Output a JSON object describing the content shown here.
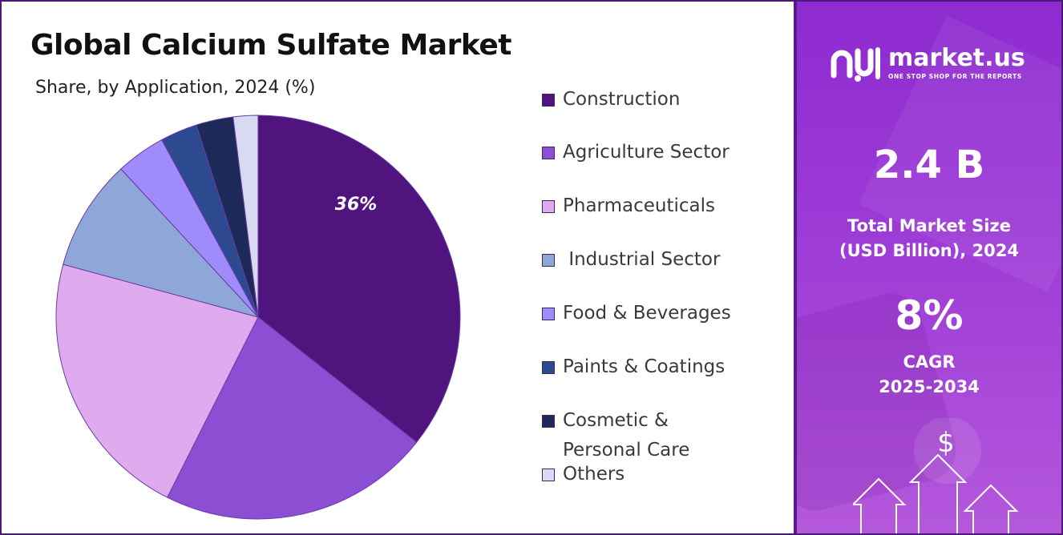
{
  "header": {
    "title": "Global Calcium Sulfate Market",
    "subtitle": "Share, by Application, 2024 (%)"
  },
  "chart_data": {
    "type": "pie",
    "title": "Global Calcium Sulfate Market",
    "subtitle": "Share, by Application, 2024 (%)",
    "categories": [
      "Construction",
      "Agriculture Sector",
      "Pharmaceuticals",
      "Industrial Sector",
      "Food & Beverages",
      "Paints & Coatings",
      "Cosmetic & Personal Care",
      "Others"
    ],
    "values": [
      36,
      22,
      22,
      9,
      4,
      3,
      3,
      2
    ],
    "data_labels": [
      "36%",
      "",
      "",
      "",
      "",
      "",
      "",
      ""
    ],
    "colors": [
      "#4f147d",
      "#8c4fd3",
      "#e0aaee",
      "#8fa6d9",
      "#9f8cfa",
      "#2d4a90",
      "#1d2a58",
      "#d8daf2"
    ],
    "legend_position": "right"
  },
  "legend": {
    "items": [
      {
        "label": "Construction",
        "color": "#4f147d"
      },
      {
        "label": "Agriculture Sector",
        "color": "#8c4fd3"
      },
      {
        "label": "Pharmaceuticals",
        "color": "#e0aaee"
      },
      {
        "label": " Industrial Sector",
        "color": "#8fa6d9"
      },
      {
        "label": "Food & Beverages",
        "color": "#9f8cfa"
      },
      {
        "label": "Paints & Coatings",
        "color": "#2d4a90"
      },
      {
        "label": "Cosmetic & Personal Care",
        "color": "#1d2a58"
      },
      {
        "label": "Others",
        "color": "#d8daf2"
      }
    ]
  },
  "sidebar": {
    "brand_name": "market.us",
    "brand_tagline": "ONE STOP SHOP FOR THE REPORTS",
    "market_size_value": "2.4  B",
    "market_size_label_1": "Total Market Size",
    "market_size_label_2": "(USD Billion), 2024",
    "cagr_value": "8%",
    "cagr_label_1": "CAGR",
    "cagr_label_2": "2025-2034",
    "currency_symbol": "$",
    "panel_color": "#9a37d6",
    "border_color": "#4a1a78"
  }
}
